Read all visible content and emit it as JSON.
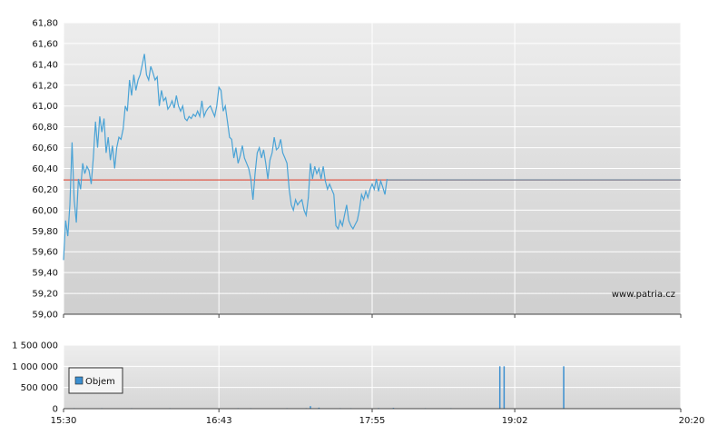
{
  "watermark": "www.patria.cz",
  "colors": {
    "price_line": "#4aa3d6",
    "reference_line": "#e05a4a",
    "last_line": "#7b8ea3",
    "volume_bar": "#3b8fd0",
    "grid": "#ffffff"
  },
  "chart_data": [
    {
      "type": "line",
      "title": "",
      "xlabel": "",
      "ylabel": "",
      "ylim": [
        59.0,
        61.8
      ],
      "yticks": [
        "61,80",
        "61,60",
        "61,40",
        "61,20",
        "61,00",
        "60,80",
        "60,60",
        "60,40",
        "60,20",
        "60,00",
        "59,80",
        "59,60",
        "59,40",
        "59,20",
        "59,00"
      ],
      "ytick_values": [
        61.8,
        61.6,
        61.4,
        61.2,
        61.0,
        60.8,
        60.6,
        60.4,
        60.2,
        60.0,
        59.8,
        59.6,
        59.4,
        59.2,
        59.0
      ],
      "xlim": [
        "15:30",
        "20:20"
      ],
      "xticks": [
        "15:30",
        "16:43",
        "17:55",
        "19:02",
        "20:20"
      ],
      "reference_value": 60.29,
      "last_value": 60.29,
      "grid": true,
      "series": [
        {
          "values": [
            [
              "15:30",
              59.52
            ],
            [
              "15:31",
              59.9
            ],
            [
              "15:32",
              59.75
            ],
            [
              "15:33",
              60.05
            ],
            [
              "15:34",
              60.65
            ],
            [
              "15:35",
              60.1
            ],
            [
              "15:36",
              59.88
            ],
            [
              "15:37",
              60.3
            ],
            [
              "15:38",
              60.2
            ],
            [
              "15:39",
              60.45
            ],
            [
              "15:40",
              60.35
            ],
            [
              "15:41",
              60.42
            ],
            [
              "15:42",
              60.38
            ],
            [
              "15:43",
              60.25
            ],
            [
              "15:44",
              60.5
            ],
            [
              "15:45",
              60.85
            ],
            [
              "15:46",
              60.6
            ],
            [
              "15:47",
              60.9
            ],
            [
              "15:48",
              60.75
            ],
            [
              "15:49",
              60.88
            ],
            [
              "15:50",
              60.55
            ],
            [
              "15:51",
              60.7
            ],
            [
              "15:52",
              60.48
            ],
            [
              "15:53",
              60.62
            ],
            [
              "15:54",
              60.4
            ],
            [
              "15:55",
              60.6
            ],
            [
              "15:56",
              60.7
            ],
            [
              "15:57",
              60.68
            ],
            [
              "15:58",
              60.78
            ],
            [
              "15:59",
              61.0
            ],
            [
              "16:00",
              60.95
            ],
            [
              "16:01",
              61.25
            ],
            [
              "16:02",
              61.1
            ],
            [
              "16:03",
              61.3
            ],
            [
              "16:04",
              61.15
            ],
            [
              "16:05",
              61.25
            ],
            [
              "16:06",
              61.3
            ],
            [
              "16:07",
              61.4
            ],
            [
              "16:08",
              61.5
            ],
            [
              "16:09",
              61.3
            ],
            [
              "16:10",
              61.25
            ],
            [
              "16:11",
              61.38
            ],
            [
              "16:12",
              61.32
            ],
            [
              "16:13",
              61.25
            ],
            [
              "16:14",
              61.28
            ],
            [
              "16:15",
              61.0
            ],
            [
              "16:16",
              61.15
            ],
            [
              "16:17",
              61.05
            ],
            [
              "16:18",
              61.08
            ],
            [
              "16:19",
              60.97
            ],
            [
              "16:20",
              61.0
            ],
            [
              "16:21",
              61.05
            ],
            [
              "16:22",
              60.98
            ],
            [
              "16:23",
              61.1
            ],
            [
              "16:24",
              61.0
            ],
            [
              "16:25",
              60.95
            ],
            [
              "16:26",
              61.0
            ],
            [
              "16:27",
              60.88
            ],
            [
              "16:28",
              60.86
            ],
            [
              "16:29",
              60.9
            ],
            [
              "16:30",
              60.88
            ],
            [
              "16:31",
              60.92
            ],
            [
              "16:32",
              60.9
            ],
            [
              "16:33",
              60.95
            ],
            [
              "16:34",
              60.9
            ],
            [
              "16:35",
              61.05
            ],
            [
              "16:36",
              60.9
            ],
            [
              "16:37",
              60.95
            ],
            [
              "16:38",
              60.98
            ],
            [
              "16:39",
              61.0
            ],
            [
              "16:40",
              60.95
            ],
            [
              "16:41",
              60.9
            ],
            [
              "16:42",
              61.0
            ],
            [
              "16:43",
              61.18
            ],
            [
              "16:44",
              61.15
            ],
            [
              "16:45",
              60.95
            ],
            [
              "16:46",
              61.0
            ],
            [
              "16:47",
              60.85
            ],
            [
              "16:48",
              60.7
            ],
            [
              "16:49",
              60.68
            ],
            [
              "16:50",
              60.5
            ],
            [
              "16:51",
              60.6
            ],
            [
              "16:52",
              60.45
            ],
            [
              "16:53",
              60.52
            ],
            [
              "16:54",
              60.62
            ],
            [
              "16:55",
              60.5
            ],
            [
              "16:56",
              60.45
            ],
            [
              "16:57",
              60.4
            ],
            [
              "16:58",
              60.3
            ],
            [
              "16:59",
              60.1
            ],
            [
              "17:00",
              60.35
            ],
            [
              "17:01",
              60.55
            ],
            [
              "17:02",
              60.6
            ],
            [
              "17:03",
              60.5
            ],
            [
              "17:04",
              60.58
            ],
            [
              "17:05",
              60.45
            ],
            [
              "17:06",
              60.3
            ],
            [
              "17:07",
              60.48
            ],
            [
              "17:08",
              60.55
            ],
            [
              "17:09",
              60.7
            ],
            [
              "17:10",
              60.58
            ],
            [
              "17:11",
              60.6
            ],
            [
              "17:12",
              60.68
            ],
            [
              "17:13",
              60.55
            ],
            [
              "17:14",
              60.5
            ],
            [
              "17:15",
              60.45
            ],
            [
              "17:16",
              60.2
            ],
            [
              "17:17",
              60.05
            ],
            [
              "17:18",
              60.0
            ],
            [
              "17:19",
              60.1
            ],
            [
              "17:20",
              60.05
            ],
            [
              "17:21",
              60.08
            ],
            [
              "17:22",
              60.1
            ],
            [
              "17:23",
              60.0
            ],
            [
              "17:24",
              59.95
            ],
            [
              "17:25",
              60.12
            ],
            [
              "17:26",
              60.45
            ],
            [
              "17:27",
              60.3
            ],
            [
              "17:28",
              60.42
            ],
            [
              "17:29",
              60.35
            ],
            [
              "17:30",
              60.4
            ],
            [
              "17:31",
              60.3
            ],
            [
              "17:32",
              60.42
            ],
            [
              "17:33",
              60.28
            ],
            [
              "17:34",
              60.2
            ],
            [
              "17:35",
              60.25
            ],
            [
              "17:36",
              60.2
            ],
            [
              "17:37",
              60.15
            ],
            [
              "17:38",
              59.85
            ],
            [
              "17:39",
              59.82
            ],
            [
              "17:40",
              59.9
            ],
            [
              "17:41",
              59.85
            ],
            [
              "17:42",
              59.95
            ],
            [
              "17:43",
              60.05
            ],
            [
              "17:44",
              59.9
            ],
            [
              "17:45",
              59.85
            ],
            [
              "17:46",
              59.82
            ],
            [
              "17:47",
              59.86
            ],
            [
              "17:48",
              59.9
            ],
            [
              "17:49",
              60.0
            ],
            [
              "17:50",
              60.15
            ],
            [
              "17:51",
              60.1
            ],
            [
              "17:52",
              60.18
            ],
            [
              "17:53",
              60.12
            ],
            [
              "17:54",
              60.2
            ],
            [
              "17:55",
              60.25
            ],
            [
              "17:56",
              60.2
            ],
            [
              "17:57",
              60.3
            ],
            [
              "17:58",
              60.18
            ],
            [
              "17:59",
              60.28
            ],
            [
              "18:00",
              60.22
            ],
            [
              "18:01",
              60.15
            ],
            [
              "18:02",
              60.3
            ]
          ]
        }
      ]
    },
    {
      "type": "bar",
      "ylim": [
        0,
        1500000
      ],
      "yticks": [
        "1 500 000",
        "1 000 000",
        "500 000",
        "0"
      ],
      "ytick_values": [
        1500000,
        1000000,
        500000,
        0
      ],
      "xticks": [
        "15:30",
        "16:43",
        "17:55",
        "19:02",
        "20:20"
      ],
      "legend": [
        "Objem"
      ],
      "legend_position": "top-left",
      "series": [
        {
          "name": "Objem",
          "values": [
            [
              "15:35",
              3000
            ],
            [
              "15:48",
              2500
            ],
            [
              "16:02",
              2000
            ],
            [
              "16:20",
              3000
            ],
            [
              "16:52",
              9000
            ],
            [
              "16:58",
              5000
            ],
            [
              "17:15",
              12000
            ],
            [
              "17:24",
              6000
            ],
            [
              "17:26",
              60000
            ],
            [
              "17:30",
              25000
            ],
            [
              "17:40",
              10000
            ],
            [
              "17:45",
              8000
            ],
            [
              "17:58",
              15000
            ],
            [
              "18:05",
              20000
            ],
            [
              "18:20",
              12000
            ],
            [
              "18:32",
              8000
            ],
            [
              "18:55",
              1000000
            ],
            [
              "18:57",
              1000000
            ],
            [
              "19:25",
              1000000
            ]
          ]
        }
      ]
    }
  ]
}
